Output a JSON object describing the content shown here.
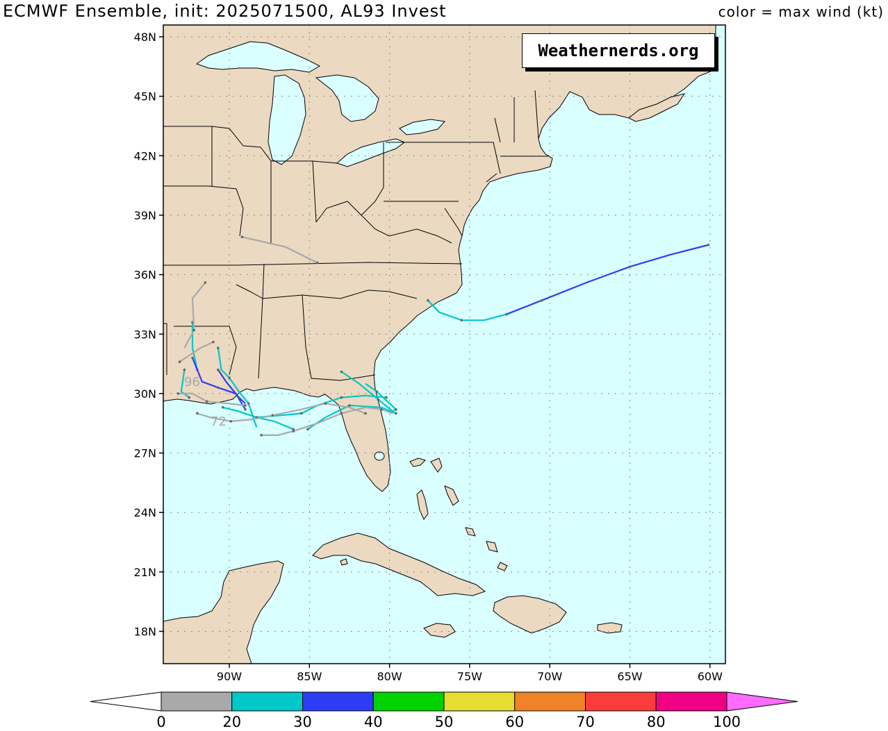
{
  "title": "ECMWF Ensemble, init: 2025071500, AL93 Invest",
  "legend_title": "color = max wind (kt)",
  "brand": "Weathernerds.org",
  "colors": {
    "ocean": "#d9ffff",
    "land": "#ebd9c2",
    "grid": "#888888"
  },
  "lat_labels": [
    "48N",
    "45N",
    "42N",
    "39N",
    "36N",
    "33N",
    "30N",
    "27N",
    "24N",
    "21N",
    "18N"
  ],
  "lon_labels": [
    "90W",
    "85W",
    "80W",
    "75W",
    "70W",
    "65W",
    "60W"
  ],
  "colorbar": {
    "labels": [
      "0",
      "20",
      "30",
      "40",
      "50",
      "60",
      "70",
      "80",
      "100"
    ],
    "colors": [
      "#a9a9a9",
      "#00c8c8",
      "#2d3cf5",
      "#00d200",
      "#e6dc32",
      "#f08228",
      "#fa3c3c",
      "#f00082",
      "#ff6bff"
    ]
  },
  "track_labels": [
    {
      "text": "96",
      "color": "#a9a9a9"
    },
    {
      "text": "72",
      "color": "#a9a9a9"
    }
  ],
  "tracks": [
    {
      "color": "#2d3cf5",
      "points": [
        [
          -60.1,
          37.5
        ],
        [
          -62.5,
          37.0
        ],
        [
          -65.0,
          36.4
        ],
        [
          -67.7,
          35.6
        ],
        [
          -70.5,
          34.7
        ],
        [
          -72.7,
          34.0
        ]
      ]
    },
    {
      "color": "#00c8c8",
      "points": [
        [
          -72.7,
          34.0
        ],
        [
          -74.1,
          33.7
        ],
        [
          -75.5,
          33.7
        ],
        [
          -76.9,
          34.1
        ],
        [
          -77.6,
          34.7
        ]
      ]
    },
    {
      "color": "#00c8c8",
      "points": [
        [
          -83.0,
          31.1
        ],
        [
          -81.9,
          30.5
        ],
        [
          -80.7,
          29.7
        ],
        [
          -79.8,
          29.1
        ],
        [
          -79.6,
          29.2
        ],
        [
          -80.0,
          29.5
        ],
        [
          -80.8,
          30.1
        ],
        [
          -81.5,
          30.5
        ]
      ]
    },
    {
      "color": "#00c8c8",
      "points": [
        [
          -85.1,
          28.2
        ],
        [
          -84.0,
          28.8
        ],
        [
          -82.5,
          29.4
        ],
        [
          -80.5,
          29.3
        ],
        [
          -79.6,
          29.0
        ]
      ]
    },
    {
      "color": "#00c8c8",
      "points": [
        [
          -86.0,
          28.2
        ],
        [
          -87.2,
          28.6
        ],
        [
          -88.3,
          28.8
        ],
        [
          -89.4,
          29.1
        ],
        [
          -90.4,
          29.3
        ]
      ]
    },
    {
      "color": "#00c8c8",
      "points": [
        [
          -88.3,
          28.8
        ],
        [
          -86.8,
          28.9
        ],
        [
          -85.5,
          29.0
        ],
        [
          -84.5,
          29.4
        ],
        [
          -83.0,
          29.8
        ],
        [
          -81.5,
          29.9
        ],
        [
          -80.2,
          29.8
        ]
      ]
    },
    {
      "color": "#00c8c8",
      "points": [
        [
          -92.5,
          29.8
        ],
        [
          -93.0,
          30.1
        ],
        [
          -92.8,
          31.2
        ]
      ]
    },
    {
      "color": "#00c8c8",
      "points": [
        [
          -92.3,
          33.6
        ],
        [
          -92.3,
          32.3
        ],
        [
          -92.0,
          31.2
        ]
      ]
    },
    {
      "color": "#00c8c8",
      "points": [
        [
          -90.7,
          32.3
        ],
        [
          -90.5,
          31.2
        ],
        [
          -90.0,
          30.8
        ],
        [
          -89.4,
          30.1
        ],
        [
          -88.8,
          29.5
        ],
        [
          -88.3,
          28.3
        ]
      ]
    },
    {
      "color": "#2d3cf5",
      "points": [
        [
          -92.3,
          31.8
        ],
        [
          -91.7,
          30.6
        ],
        [
          -90.7,
          30.3
        ],
        [
          -89.6,
          30.0
        ],
        [
          -89.0,
          29.2
        ]
      ]
    },
    {
      "color": "#2d3cf5",
      "points": [
        [
          -90.7,
          31.2
        ],
        [
          -90.2,
          30.6
        ],
        [
          -89.4,
          29.8
        ],
        [
          -89.0,
          29.5
        ]
      ]
    },
    {
      "color": "#a9a9a9",
      "points": [
        [
          -89.2,
          37.9
        ],
        [
          -86.5,
          37.4
        ],
        [
          -84.5,
          36.6
        ]
      ]
    },
    {
      "color": "#a9a9a9",
      "points": [
        [
          -91.5,
          35.6
        ],
        [
          -92.3,
          34.8
        ],
        [
          -92.2,
          33.2
        ],
        [
          -92.8,
          32.3
        ]
      ]
    },
    {
      "color": "#a9a9a9",
      "points": [
        [
          -93.1,
          31.6
        ],
        [
          -91.8,
          32.3
        ],
        [
          -91.0,
          32.6
        ]
      ]
    },
    {
      "color": "#a9a9a9",
      "points": [
        [
          -93.2,
          30.0
        ],
        [
          -92.3,
          30.0
        ],
        [
          -91.4,
          29.6
        ],
        [
          -90.1,
          29.5
        ],
        [
          -89.0,
          29.4
        ]
      ]
    },
    {
      "color": "#a9a9a9",
      "points": [
        [
          -92.0,
          29.0
        ],
        [
          -91.2,
          28.8
        ],
        [
          -89.9,
          28.6
        ],
        [
          -88.5,
          28.7
        ],
        [
          -87.3,
          28.9
        ],
        [
          -85.5,
          29.2
        ],
        [
          -84.0,
          29.5
        ],
        [
          -82.5,
          29.3
        ],
        [
          -81.5,
          29.0
        ]
      ]
    },
    {
      "color": "#a9a9a9",
      "points": [
        [
          -88.0,
          27.9
        ],
        [
          -87.0,
          27.9
        ],
        [
          -86.0,
          28.1
        ],
        [
          -84.5,
          28.5
        ],
        [
          -83.0,
          29.0
        ],
        [
          -81.5,
          29.3
        ],
        [
          -80.5,
          29.2
        ],
        [
          -79.8,
          29.0
        ]
      ]
    }
  ]
}
